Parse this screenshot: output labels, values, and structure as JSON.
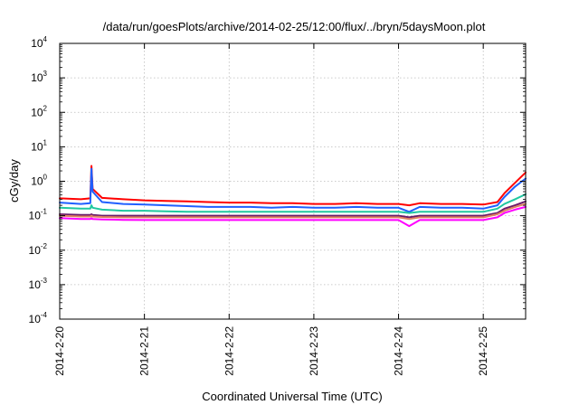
{
  "chart_data": {
    "type": "line",
    "title": "/data/run/goesPlots/archive/2014-02-25/12:00/flux/../bryn/5daysMoon.plot",
    "xlabel": "Coordinated Universal Time (UTC)",
    "ylabel": "cGy/day",
    "x_range": [
      "2014-02-20",
      "2014-02-25T12:00"
    ],
    "x_ticks": [
      "2014-2-20",
      "2014-2-21",
      "2014-2-22",
      "2014-2-23",
      "2014-2-24",
      "2014-2-25"
    ],
    "y_scale": "log",
    "y_range": [
      0.0001,
      10000
    ],
    "y_ticks": [
      {
        "base": "10",
        "exp": "-4"
      },
      {
        "base": "10",
        "exp": "-3"
      },
      {
        "base": "10",
        "exp": "-2"
      },
      {
        "base": "10",
        "exp": "-1"
      },
      {
        "base": "10",
        "exp": "0"
      },
      {
        "base": "10",
        "exp": "1"
      },
      {
        "base": "10",
        "exp": "2"
      },
      {
        "base": "10",
        "exp": "3"
      },
      {
        "base": "10",
        "exp": "4"
      }
    ],
    "grid": true,
    "x_times": [
      "2014-02-20T00:00",
      "2014-02-20T06:00",
      "2014-02-20T08:40",
      "2014-02-20T09:00",
      "2014-02-20T09:20",
      "2014-02-20T12:00",
      "2014-02-20T18:00",
      "2014-02-21T00:00",
      "2014-02-21T06:00",
      "2014-02-21T12:00",
      "2014-02-21T18:00",
      "2014-02-22T00:00",
      "2014-02-22T06:00",
      "2014-02-22T12:00",
      "2014-02-22T18:00",
      "2014-02-23T00:00",
      "2014-02-23T06:00",
      "2014-02-23T12:00",
      "2014-02-23T18:00",
      "2014-02-24T00:00",
      "2014-02-24T03:00",
      "2014-02-24T06:00",
      "2014-02-24T12:00",
      "2014-02-24T18:00",
      "2014-02-25T00:00",
      "2014-02-25T04:00",
      "2014-02-25T06:00",
      "2014-02-25T09:00",
      "2014-02-25T12:00"
    ],
    "series": [
      {
        "color": "#ff0000",
        "values": [
          0.32,
          0.3,
          0.32,
          2.8,
          0.6,
          0.33,
          0.3,
          0.28,
          0.27,
          0.26,
          0.25,
          0.24,
          0.24,
          0.23,
          0.23,
          0.22,
          0.22,
          0.23,
          0.22,
          0.22,
          0.2,
          0.23,
          0.22,
          0.22,
          0.21,
          0.25,
          0.45,
          0.9,
          1.8
        ]
      },
      {
        "color": "#1f5fff",
        "values": [
          0.24,
          0.22,
          0.23,
          2.3,
          0.5,
          0.25,
          0.22,
          0.21,
          0.2,
          0.19,
          0.18,
          0.18,
          0.18,
          0.17,
          0.18,
          0.17,
          0.17,
          0.18,
          0.17,
          0.17,
          0.13,
          0.18,
          0.17,
          0.17,
          0.16,
          0.2,
          0.35,
          0.7,
          1.2
        ]
      },
      {
        "color": "#20c8a0",
        "values": [
          0.17,
          0.16,
          0.16,
          0.2,
          0.17,
          0.15,
          0.14,
          0.14,
          0.135,
          0.13,
          0.13,
          0.13,
          0.13,
          0.13,
          0.13,
          0.13,
          0.13,
          0.13,
          0.13,
          0.13,
          0.12,
          0.13,
          0.13,
          0.13,
          0.13,
          0.16,
          0.22,
          0.3,
          0.42
        ]
      },
      {
        "color": "#6a1a6a",
        "values": [
          0.11,
          0.105,
          0.105,
          0.11,
          0.105,
          0.1,
          0.1,
          0.1,
          0.1,
          0.1,
          0.1,
          0.1,
          0.1,
          0.1,
          0.1,
          0.1,
          0.1,
          0.1,
          0.1,
          0.1,
          0.09,
          0.1,
          0.1,
          0.1,
          0.1,
          0.12,
          0.16,
          0.2,
          0.26
        ]
      },
      {
        "color": "#e08060",
        "values": [
          0.1,
          0.095,
          0.095,
          0.1,
          0.095,
          0.092,
          0.09,
          0.09,
          0.09,
          0.09,
          0.09,
          0.09,
          0.09,
          0.09,
          0.09,
          0.09,
          0.09,
          0.09,
          0.09,
          0.09,
          0.08,
          0.09,
          0.09,
          0.09,
          0.09,
          0.11,
          0.14,
          0.18,
          0.22
        ]
      },
      {
        "color": "#ff00ff",
        "values": [
          0.085,
          0.08,
          0.08,
          0.085,
          0.08,
          0.078,
          0.076,
          0.075,
          0.075,
          0.075,
          0.075,
          0.075,
          0.075,
          0.075,
          0.075,
          0.075,
          0.075,
          0.075,
          0.075,
          0.075,
          0.05,
          0.075,
          0.075,
          0.075,
          0.075,
          0.09,
          0.12,
          0.15,
          0.18
        ]
      }
    ]
  }
}
